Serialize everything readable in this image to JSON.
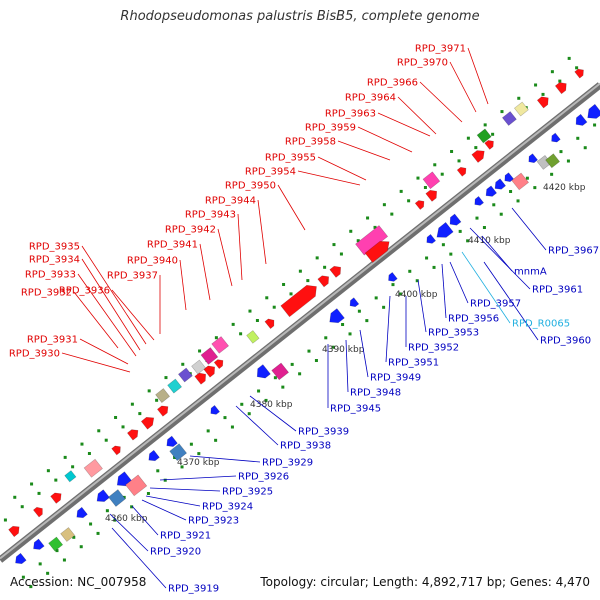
{
  "title": "Rhodopseudomonas palustris BisB5, complete genome",
  "footer": {
    "accession": "Accession: NC_007958",
    "summary": "Topology: circular; Length: 4,892,717 bp; Genes: 4,470"
  },
  "colors": {
    "plus_label": "#e00000",
    "minus_label": "#0000c0",
    "rna_label": "#22b0e0",
    "backbone": "#8a8a8a",
    "tick_dot": "#1a8a1a"
  },
  "ticks": [
    "4360 kbp",
    "4370 kbp",
    "4380 kbp",
    "4390 kbp",
    "4400 kbp",
    "4410 kbp",
    "4420 kbp"
  ],
  "labels_plus": [
    "RPD_3930",
    "RPD_3931",
    "RPD_3932",
    "RPD_3933",
    "RPD_3934",
    "RPD_3935",
    "RPD_3936",
    "RPD_3937",
    "RPD_3940",
    "RPD_3941",
    "RPD_3942",
    "RPD_3943",
    "RPD_3944",
    "RPD_3950",
    "RPD_3954",
    "RPD_3955",
    "RPD_3958",
    "RPD_3959",
    "RPD_3963",
    "RPD_3964",
    "RPD_3966",
    "RPD_3970",
    "RPD_3971"
  ],
  "labels_minus": [
    "RPD_3919",
    "RPD_3920",
    "RPD_3921",
    "RPD_3923",
    "RPD_3924",
    "RPD_3925",
    "RPD_3926",
    "RPD_3929",
    "RPD_3938",
    "RPD_3939",
    "RPD_3945",
    "RPD_3948",
    "RPD_3949",
    "RPD_3951",
    "RPD_3952",
    "RPD_3953",
    "RPD_3956",
    "RPD_3957",
    "RPD_3960",
    "RPD_3961",
    "mnmA",
    "RPD_3967"
  ],
  "labels_rna": [
    "RPD_R0065"
  ]
}
